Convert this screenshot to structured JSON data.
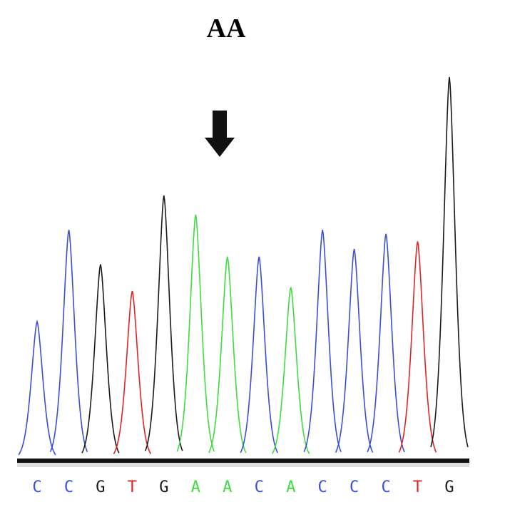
{
  "chart_data": {
    "type": "chromatogram",
    "title": "AA",
    "categories": [
      "C",
      "C",
      "G",
      "T",
      "G",
      "A",
      "A",
      "C",
      "A",
      "C",
      "C",
      "C",
      "T",
      "G"
    ],
    "values": [
      36,
      60,
      51,
      44,
      69,
      64,
      53,
      53,
      45,
      60,
      55,
      59,
      57,
      100
    ],
    "ylim": [
      0,
      100
    ],
    "colors": {
      "A": "#3fdc3f",
      "C": "#3a4fd8",
      "G": "#1a1a1a",
      "T": "#e02424"
    }
  }
}
